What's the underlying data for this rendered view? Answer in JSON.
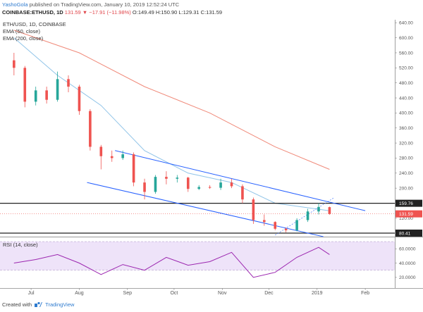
{
  "header": {
    "author": "YashoGola",
    "published_text": "published on TradingView.com, January 10, 2019 12:52:24 UTC",
    "symbol": "COINBASE:ETHUSD, 1D",
    "change": "131.59 ▼ −17.91 (−11.98%)",
    "ohlc": "O:149.49 H:150.90 L:129.31 C:131.59"
  },
  "legend": {
    "main": "ETH/USD, 1D, COINBASE",
    "ema50": "EMA (50, close)",
    "ema200": "EMA (200, close)",
    "rsi": "RSI (14, close)"
  },
  "footer": {
    "prefix": "Created with",
    "brand": "TradingView"
  },
  "colors": {
    "up": "#26a69a",
    "down": "#ef5350",
    "ema50": "#90c4e8",
    "ema200": "#f08a7a",
    "channel": "#2962ff",
    "rsi_line": "#9c27b0",
    "rsi_band": "#eadcf7"
  },
  "chart_data": [
    {
      "type": "candlestick",
      "title": "ETH/USD, 1D, COINBASE",
      "y_ticks": [
        "640.00",
        "600.00",
        "560.00",
        "520.00",
        "480.00",
        "440.00",
        "400.00",
        "360.00",
        "320.00",
        "280.00",
        "240.00",
        "200.00",
        "160.00",
        "120.00"
      ],
      "x_ticks": [
        "Jul",
        "Aug",
        "Sep",
        "Oct",
        "Nov",
        "Dec",
        "2019",
        "Feb"
      ],
      "ylim": [
        71,
        648
      ],
      "price_labels": [
        {
          "value": 159.76,
          "text": "159.76",
          "style": "dark"
        },
        {
          "value": 131.59,
          "text": "131.59",
          "style": "red"
        },
        {
          "value": 80.41,
          "text": "80.41",
          "style": "dark"
        }
      ],
      "horizontal_levels": [
        159.76,
        80.41
      ],
      "candles_weekly_approx": [
        {
          "date": "2018-06-20",
          "o": 540,
          "h": 560,
          "l": 500,
          "c": 520
        },
        {
          "date": "2018-06-27",
          "o": 520,
          "h": 525,
          "l": 415,
          "c": 430
        },
        {
          "date": "2018-07-04",
          "o": 430,
          "h": 470,
          "l": 420,
          "c": 460
        },
        {
          "date": "2018-07-11",
          "o": 460,
          "h": 470,
          "l": 425,
          "c": 435
        },
        {
          "date": "2018-07-18",
          "o": 435,
          "h": 510,
          "l": 430,
          "c": 490
        },
        {
          "date": "2018-07-25",
          "o": 490,
          "h": 500,
          "l": 455,
          "c": 470
        },
        {
          "date": "2018-08-01",
          "o": 470,
          "h": 475,
          "l": 395,
          "c": 405
        },
        {
          "date": "2018-08-08",
          "o": 405,
          "h": 410,
          "l": 300,
          "c": 310
        },
        {
          "date": "2018-08-15",
          "o": 310,
          "h": 315,
          "l": 250,
          "c": 285
        },
        {
          "date": "2018-08-22",
          "o": 285,
          "h": 300,
          "l": 270,
          "c": 280
        },
        {
          "date": "2018-08-29",
          "o": 280,
          "h": 300,
          "l": 275,
          "c": 290
        },
        {
          "date": "2018-09-05",
          "o": 290,
          "h": 295,
          "l": 205,
          "c": 215
        },
        {
          "date": "2018-09-12",
          "o": 215,
          "h": 225,
          "l": 170,
          "c": 190
        },
        {
          "date": "2018-09-19",
          "o": 190,
          "h": 235,
          "l": 185,
          "c": 230
        },
        {
          "date": "2018-09-26",
          "o": 230,
          "h": 245,
          "l": 210,
          "c": 225
        },
        {
          "date": "2018-10-03",
          "o": 225,
          "h": 235,
          "l": 215,
          "c": 228
        },
        {
          "date": "2018-10-10",
          "o": 228,
          "h": 230,
          "l": 190,
          "c": 198
        },
        {
          "date": "2018-10-17",
          "o": 198,
          "h": 208,
          "l": 195,
          "c": 203
        },
        {
          "date": "2018-10-24",
          "o": 203,
          "h": 208,
          "l": 198,
          "c": 201
        },
        {
          "date": "2018-10-31",
          "o": 201,
          "h": 225,
          "l": 195,
          "c": 215
        },
        {
          "date": "2018-11-07",
          "o": 215,
          "h": 225,
          "l": 200,
          "c": 205
        },
        {
          "date": "2018-11-14",
          "o": 205,
          "h": 210,
          "l": 160,
          "c": 170
        },
        {
          "date": "2018-11-21",
          "o": 170,
          "h": 175,
          "l": 105,
          "c": 115
        },
        {
          "date": "2018-11-28",
          "o": 115,
          "h": 130,
          "l": 100,
          "c": 110
        },
        {
          "date": "2018-12-05",
          "o": 110,
          "h": 112,
          "l": 88,
          "c": 92
        },
        {
          "date": "2018-12-12",
          "o": 92,
          "h": 95,
          "l": 82,
          "c": 88
        },
        {
          "date": "2018-12-19",
          "o": 88,
          "h": 120,
          "l": 85,
          "c": 115
        },
        {
          "date": "2018-12-26",
          "o": 115,
          "h": 145,
          "l": 110,
          "c": 138
        },
        {
          "date": "2019-01-02",
          "o": 138,
          "h": 160,
          "l": 130,
          "c": 150
        },
        {
          "date": "2019-01-09",
          "o": 149.49,
          "h": 150.9,
          "l": 129.31,
          "c": 131.59
        }
      ],
      "ema50_approx": [
        {
          "date": "2018-06-20",
          "v": 600
        },
        {
          "date": "2018-07-18",
          "v": 500
        },
        {
          "date": "2018-08-15",
          "v": 420
        },
        {
          "date": "2018-09-12",
          "v": 300
        },
        {
          "date": "2018-10-10",
          "v": 240
        },
        {
          "date": "2018-11-07",
          "v": 215
        },
        {
          "date": "2018-12-05",
          "v": 160
        },
        {
          "date": "2019-01-09",
          "v": 140
        }
      ],
      "ema200_approx": [
        {
          "date": "2018-06-20",
          "v": 620
        },
        {
          "date": "2018-08-01",
          "v": 560
        },
        {
          "date": "2018-09-12",
          "v": 470
        },
        {
          "date": "2018-10-24",
          "v": 400
        },
        {
          "date": "2018-12-05",
          "v": 310
        },
        {
          "date": "2019-01-09",
          "v": 250
        }
      ]
    },
    {
      "type": "line",
      "title": "RSI (14, close)",
      "y_ticks": [
        "60.0000",
        "40.0000",
        "20.0000"
      ],
      "ylim": [
        10,
        75
      ],
      "band": [
        30,
        70
      ],
      "rsi_approx": [
        {
          "date": "2018-06-20",
          "v": 40
        },
        {
          "date": "2018-07-04",
          "v": 45
        },
        {
          "date": "2018-07-18",
          "v": 52
        },
        {
          "date": "2018-08-01",
          "v": 40
        },
        {
          "date": "2018-08-15",
          "v": 24
        },
        {
          "date": "2018-08-29",
          "v": 38
        },
        {
          "date": "2018-09-12",
          "v": 30
        },
        {
          "date": "2018-09-26",
          "v": 48
        },
        {
          "date": "2018-10-10",
          "v": 37
        },
        {
          "date": "2018-10-24",
          "v": 42
        },
        {
          "date": "2018-11-07",
          "v": 55
        },
        {
          "date": "2018-11-21",
          "v": 20
        },
        {
          "date": "2018-12-05",
          "v": 27
        },
        {
          "date": "2018-12-19",
          "v": 48
        },
        {
          "date": "2019-01-02",
          "v": 62
        },
        {
          "date": "2019-01-09",
          "v": 52
        }
      ]
    }
  ]
}
